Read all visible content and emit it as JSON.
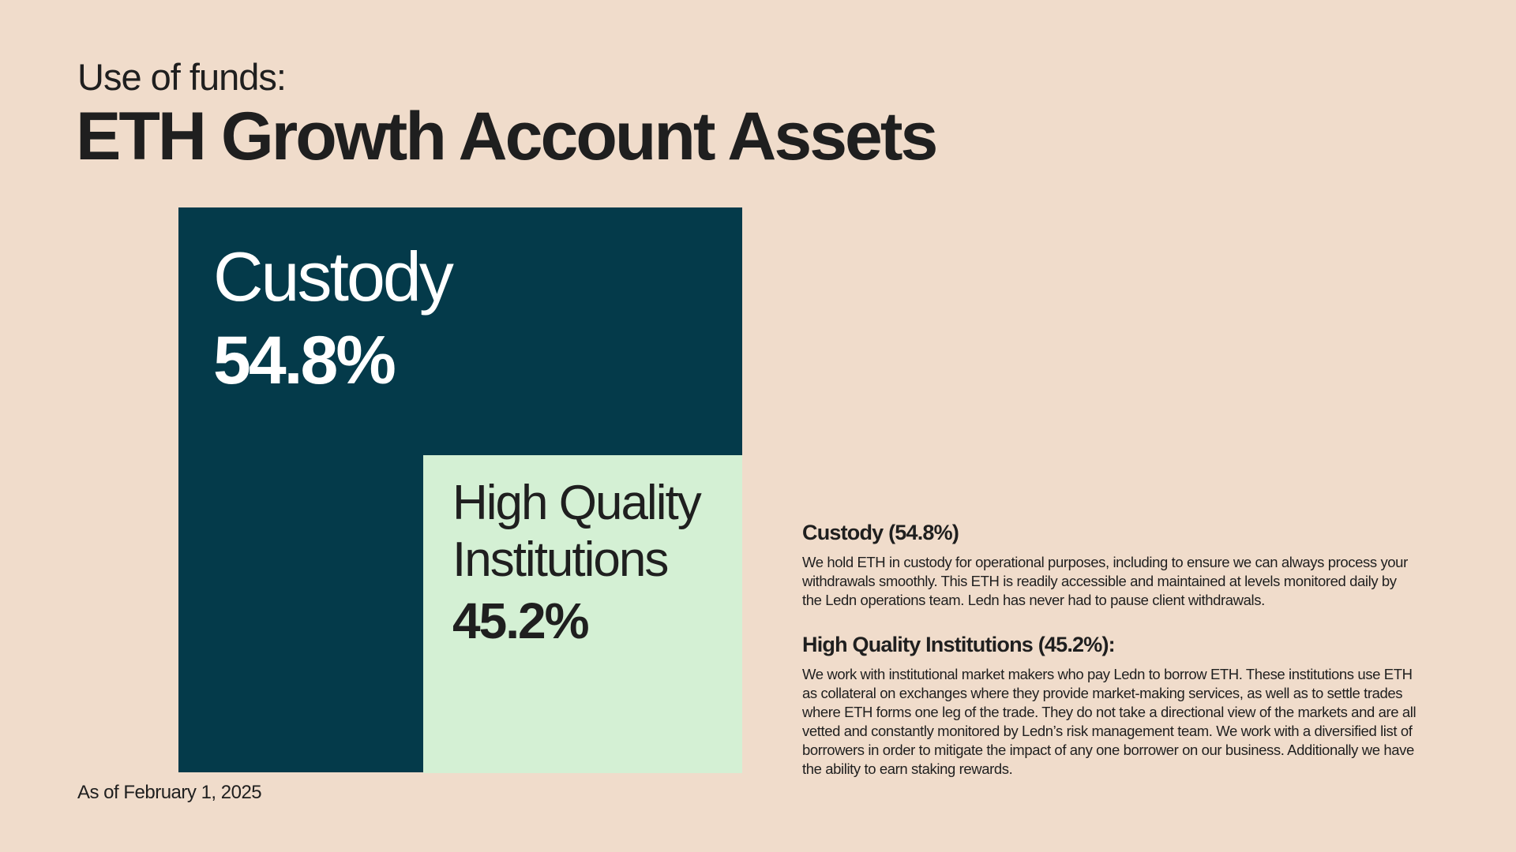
{
  "header": {
    "eyebrow": "Use of funds:",
    "title": "ETH Growth Account Assets"
  },
  "blocks": [
    {
      "label": "Custody",
      "value": "54.8%"
    },
    {
      "label": "High Quality Institutions",
      "value": "45.2%"
    }
  ],
  "descriptions": [
    {
      "heading": "Custody (54.8%)",
      "body": "We hold ETH in custody for operational purposes, including to ensure we can always process your withdrawals smoothly. This ETH is readily accessible and maintained at levels monitored daily by the Ledn operations team. Ledn has never had to pause client withdrawals."
    },
    {
      "heading": "High Quality Institutions (45.2%):",
      "body": "We work with institutional market makers who pay Ledn to borrow ETH. These institutions use ETH as collateral on exchanges where they provide market-making services, as well as to settle trades where ETH forms one leg of the trade. They do not take a directional view of the markets and are all vetted and constantly monitored by Ledn’s risk management team. We work with a diversified list of borrowers in order to mitigate the impact of any one borrower on our business. Additionally we have the ability to earn staking rewards."
    }
  ],
  "footnote": "As of February 1, 2025"
}
